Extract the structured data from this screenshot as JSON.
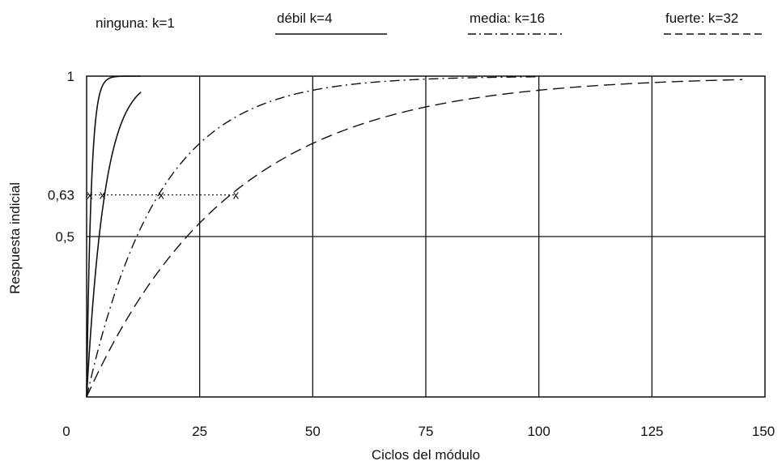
{
  "chart_data": {
    "type": "line",
    "title": "",
    "xlabel": "Ciclos del módulo",
    "ylabel": "Respuesta indicial",
    "xlim": [
      0,
      150
    ],
    "ylim": [
      0,
      1
    ],
    "x_ticks": [
      "0",
      "25",
      "50",
      "75",
      "100",
      "125",
      "150"
    ],
    "x_tick_values": [
      0,
      25,
      50,
      75,
      100,
      125,
      150
    ],
    "y_ticks": [
      "0,5",
      "0,63",
      "1"
    ],
    "y_tick_values": [
      0.5,
      0.63,
      1
    ],
    "grid": true,
    "legend_position": "top",
    "series": [
      {
        "name": "ninguna: k=1",
        "k": 1,
        "style": "solid-thin",
        "x_end": 12
      },
      {
        "name": "débil k=4",
        "k": 4,
        "style": "solid",
        "x_end": 12
      },
      {
        "name": "media: k=16",
        "k": 16,
        "style": "dash-dot",
        "x_end": 100
      },
      {
        "name": "fuerte: k=32",
        "k": 32,
        "style": "dashed",
        "x_end": 145
      }
    ],
    "annotations": [
      {
        "type": "hline",
        "y": 0.63,
        "x_from": 0,
        "x_to": 33,
        "style": "dotted"
      },
      {
        "type": "marker",
        "label": "x",
        "x": 0.7,
        "y": 0.63
      },
      {
        "type": "marker",
        "label": "x",
        "x": 3.5,
        "y": 0.63
      },
      {
        "type": "marker",
        "label": "x",
        "x": 16.5,
        "y": 0.63
      },
      {
        "type": "marker",
        "label": "x",
        "x": 33,
        "y": 0.63
      }
    ]
  }
}
